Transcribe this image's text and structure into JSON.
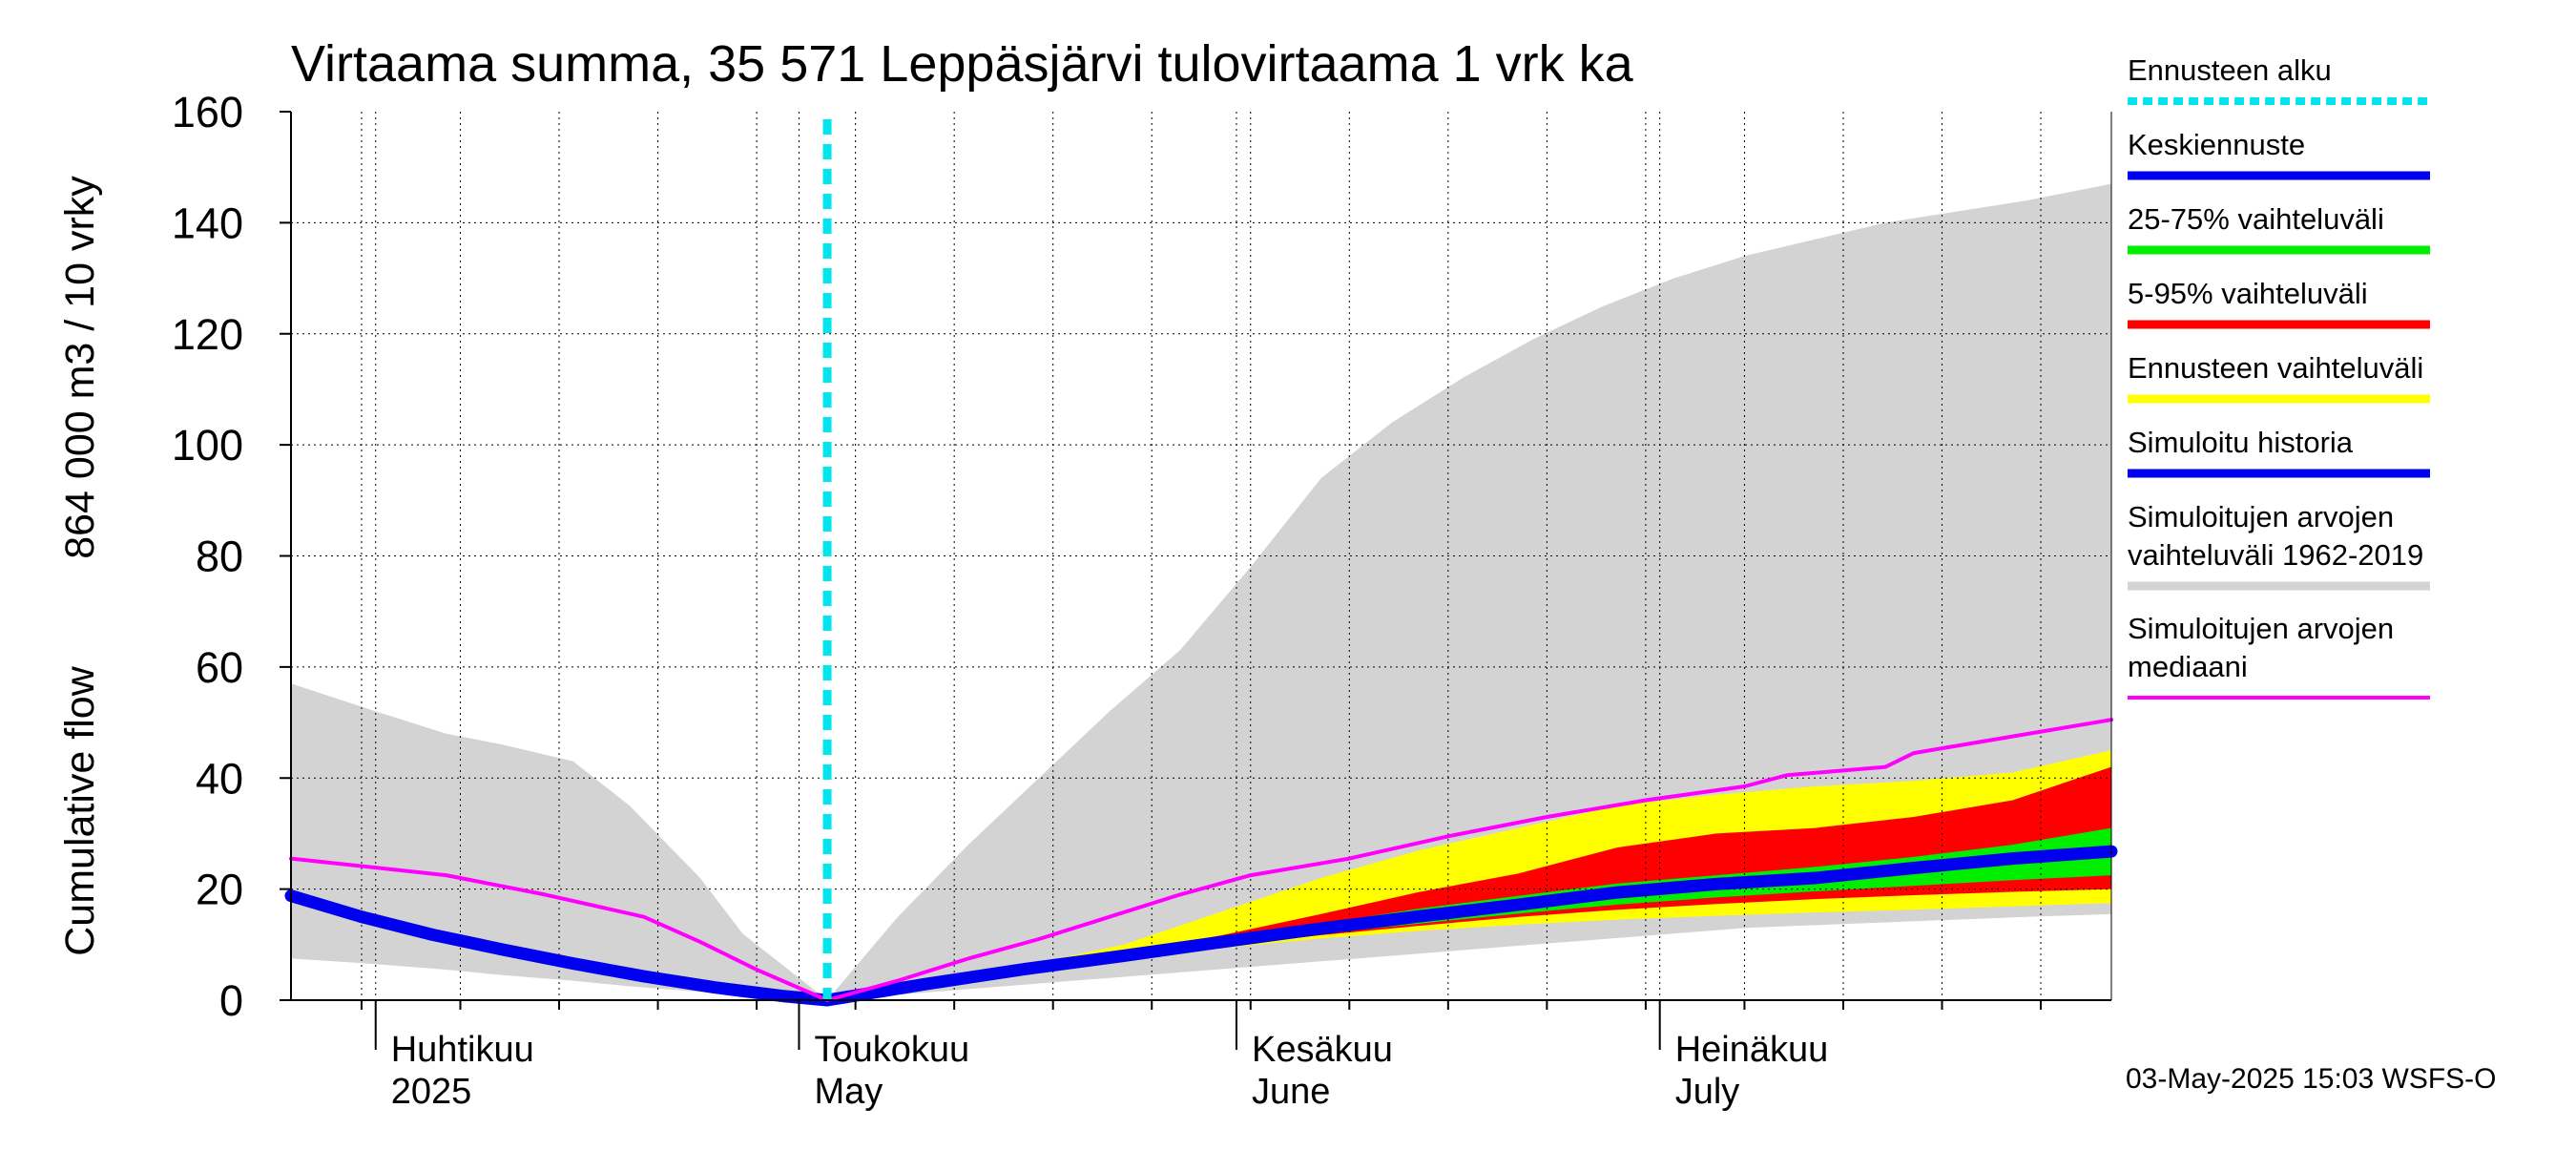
{
  "chart_data": {
    "type": "area",
    "title": "Virtaama summa, 35 571 Leppäsjärvi tulovirtaama 1 vrk ka",
    "ylabel_line1": "Cumulative flow",
    "ylabel_line2": "864 000 m3 / 10 vrky",
    "ylim": [
      0,
      160
    ],
    "yticks": [
      "0",
      "20",
      "40",
      "60",
      "80",
      "100",
      "120",
      "140",
      "160"
    ],
    "xlim": [
      "2025-03-26",
      "2025-08-02"
    ],
    "forecast_start": "2025-05-03",
    "grid": true,
    "legend_position": "right",
    "months": [
      {
        "label_fi": "Huhtikuu",
        "label_en": "2025",
        "date": "2025-04-01"
      },
      {
        "label_fi": "Toukokuu",
        "label_en": "May",
        "date": "2025-05-01"
      },
      {
        "label_fi": "Kesäkuu",
        "label_en": "June",
        "date": "2025-06-01"
      },
      {
        "label_fi": "Heinäkuu",
        "label_en": "July",
        "date": "2025-07-01"
      }
    ],
    "legend": [
      {
        "label": "Ennusteen alku",
        "color": "#00e5ee",
        "style": "dotted"
      },
      {
        "label": "Keskiennuste",
        "color": "#0000ee",
        "style": "solid"
      },
      {
        "label": "25-75% vaihteluväli",
        "color": "#00ee00",
        "style": "solid"
      },
      {
        "label": "5-95% vaihteluväli",
        "color": "#ff0000",
        "style": "solid"
      },
      {
        "label": "Ennusteen vaihteluväli",
        "color": "#ffff00",
        "style": "solid"
      },
      {
        "label": "Simuloitu historia",
        "color": "#0000ee",
        "style": "solid"
      },
      {
        "label": "Simuloitujen arvojen\nvaihteluväli 1962-2019",
        "color": "#d3d3d3",
        "style": "solid"
      },
      {
        "label": "Simuloitujen arvojen\nmediaani",
        "color": "#ff00ff",
        "style": "solid"
      }
    ],
    "series": [
      {
        "name": "Simuloitujen arvojen vaihteluväli 1962-2019",
        "kind": "band",
        "color": "#d3d3d3",
        "x": [
          "2025-03-26",
          "2025-04-01",
          "2025-04-06",
          "2025-04-10",
          "2025-04-15",
          "2025-04-19",
          "2025-04-24",
          "2025-04-27",
          "2025-05-01",
          "2025-05-03",
          "2025-05-08",
          "2025-05-13",
          "2025-05-18",
          "2025-05-23",
          "2025-05-28",
          "2025-06-02",
          "2025-06-07",
          "2025-06-12",
          "2025-06-17",
          "2025-06-22",
          "2025-06-27",
          "2025-07-02",
          "2025-07-07",
          "2025-07-12",
          "2025-07-17",
          "2025-07-22",
          "2025-07-27",
          "2025-08-02"
        ],
        "low": [
          7.5,
          6.5,
          5.5,
          4.5,
          3.5,
          2.5,
          1.5,
          0.8,
          0.2,
          0,
          1,
          2,
          3,
          4,
          5,
          6,
          7,
          8,
          9,
          10,
          11,
          12,
          13,
          13.5,
          14,
          14.5,
          15,
          15.5
        ],
        "high": [
          57,
          52,
          48,
          46,
          43,
          35,
          22,
          12,
          4,
          0,
          15,
          28,
          40,
          52,
          63,
          78,
          94,
          104,
          112,
          119,
          125,
          130,
          134,
          137,
          140,
          142,
          144,
          147
        ]
      },
      {
        "name": "Ennusteen vaihteluväli",
        "kind": "band",
        "color": "#ffff00",
        "x": [
          "2025-05-03",
          "2025-05-10",
          "2025-05-17",
          "2025-05-24",
          "2025-05-31",
          "2025-06-07",
          "2025-06-14",
          "2025-06-21",
          "2025-06-28",
          "2025-07-05",
          "2025-07-12",
          "2025-07-19",
          "2025-07-26",
          "2025-08-02"
        ],
        "low": [
          0,
          2.8,
          5.2,
          7.4,
          9.4,
          11.1,
          12.5,
          13.6,
          14.5,
          15.2,
          15.8,
          16.3,
          16.9,
          17.5
        ],
        "high": [
          0,
          3,
          6.2,
          10,
          16,
          22,
          27,
          31,
          35,
          37,
          38.5,
          39.5,
          41,
          45
        ]
      },
      {
        "name": "5-95% vaihteluväli",
        "kind": "band",
        "color": "#ff0000",
        "x": [
          "2025-05-03",
          "2025-05-10",
          "2025-05-17",
          "2025-05-24",
          "2025-05-31",
          "2025-06-07",
          "2025-06-14",
          "2025-06-21",
          "2025-06-28",
          "2025-07-05",
          "2025-07-12",
          "2025-07-19",
          "2025-07-26",
          "2025-08-02"
        ],
        "low": [
          0,
          2.9,
          5.4,
          7.7,
          9.8,
          11.7,
          13.4,
          15,
          16.3,
          17.3,
          18.2,
          18.9,
          19.5,
          20
        ],
        "high": [
          0,
          3,
          5.8,
          8.5,
          11.7,
          15.5,
          19.5,
          22.8,
          27.5,
          30,
          31,
          33,
          36,
          42
        ]
      },
      {
        "name": "25-75% vaihteluväli",
        "kind": "band",
        "color": "#00ee00",
        "x": [
          "2025-05-03",
          "2025-05-10",
          "2025-05-17",
          "2025-05-24",
          "2025-05-31",
          "2025-06-07",
          "2025-06-14",
          "2025-06-21",
          "2025-06-28",
          "2025-07-05",
          "2025-07-12",
          "2025-07-19",
          "2025-07-26",
          "2025-08-02"
        ],
        "low": [
          0,
          2.9,
          5.5,
          7.8,
          10,
          12,
          13.8,
          15.6,
          17.2,
          18.5,
          19.6,
          20.6,
          21.6,
          22.5
        ],
        "high": [
          0,
          3,
          5.7,
          8.3,
          11,
          13.8,
          16.5,
          18.8,
          21,
          22.5,
          24,
          25.8,
          28,
          31
        ]
      },
      {
        "name": "Keskiennuste",
        "kind": "line",
        "color": "#0000ee",
        "x": [
          "2025-05-03",
          "2025-05-10",
          "2025-05-17",
          "2025-05-24",
          "2025-05-31",
          "2025-06-07",
          "2025-06-14",
          "2025-06-21",
          "2025-06-28",
          "2025-07-05",
          "2025-07-12",
          "2025-07-19",
          "2025-07-26",
          "2025-08-02"
        ],
        "y": [
          0,
          2.9,
          5.6,
          8,
          10.5,
          12.9,
          15.1,
          17.2,
          19.4,
          20.9,
          22,
          23.8,
          25.5,
          26.8
        ]
      },
      {
        "name": "Simuloitu historia",
        "kind": "line",
        "color": "#0000ee",
        "x": [
          "2025-03-26",
          "2025-03-31",
          "2025-04-05",
          "2025-04-10",
          "2025-04-15",
          "2025-04-20",
          "2025-04-25",
          "2025-04-30",
          "2025-05-03"
        ],
        "y": [
          18.8,
          15,
          11.8,
          9.1,
          6.6,
          4.3,
          2.3,
          0.7,
          0
        ]
      },
      {
        "name": "Simuloitujen arvojen mediaani",
        "kind": "line",
        "color": "#ff00ff",
        "x": [
          "2025-03-26",
          "2025-04-06",
          "2025-04-13",
          "2025-04-20",
          "2025-04-24",
          "2025-04-28",
          "2025-05-03",
          "2025-05-08",
          "2025-05-13",
          "2025-05-18",
          "2025-05-23",
          "2025-05-28",
          "2025-06-02",
          "2025-06-09",
          "2025-06-16",
          "2025-06-23",
          "2025-06-30",
          "2025-07-07",
          "2025-07-10",
          "2025-07-17",
          "2025-07-19",
          "2025-07-26",
          "2025-08-02"
        ],
        "y": [
          25.5,
          22.5,
          19,
          15,
          10.5,
          5.5,
          0,
          3.5,
          7.5,
          11,
          15,
          19,
          22.5,
          25.5,
          29.5,
          33,
          36,
          38.5,
          40.5,
          42,
          44.5,
          47.5,
          50.5
        ]
      }
    ],
    "stamp": "03-May-2025 15:03 WSFS-O"
  }
}
